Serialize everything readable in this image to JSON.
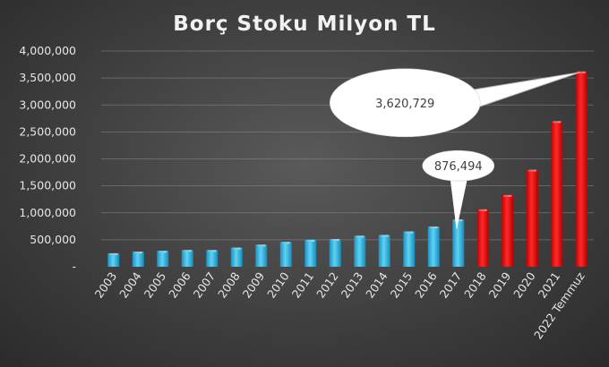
{
  "chart_data": {
    "type": "bar",
    "title": "Borç Stoku Milyon TL",
    "xlabel": "",
    "ylabel": "",
    "ylim": [
      0,
      4000000
    ],
    "ytick_labels": [
      "-",
      "500,000",
      "1,000,000",
      "1,500,000",
      "2,000,000",
      "2,500,000",
      "3,000,000",
      "3,500,000",
      "4,000,000"
    ],
    "grid": true,
    "categories": [
      "2003",
      "2004",
      "2005",
      "2006",
      "2007",
      "2008",
      "2009",
      "2010",
      "2011",
      "2012",
      "2013",
      "2014",
      "2015",
      "2016",
      "2017",
      "2018",
      "2019",
      "2020",
      "2021",
      "2022 Temmuz"
    ],
    "values": [
      250000,
      280000,
      295000,
      310000,
      310000,
      355000,
      410000,
      460000,
      500000,
      515000,
      575000,
      590000,
      655000,
      745000,
      876494,
      1065000,
      1330000,
      1800000,
      2700000,
      3620729
    ],
    "bar_colors": [
      "#29b6e8",
      "#29b6e8",
      "#29b6e8",
      "#29b6e8",
      "#29b6e8",
      "#29b6e8",
      "#29b6e8",
      "#29b6e8",
      "#29b6e8",
      "#29b6e8",
      "#29b6e8",
      "#29b6e8",
      "#29b6e8",
      "#29b6e8",
      "#29b6e8",
      "#ee1111",
      "#ee1111",
      "#ee1111",
      "#ee1111",
      "#ee1111"
    ],
    "annotations": [
      {
        "category": "2017",
        "text": "876,494"
      },
      {
        "category": "2022 Temmuz",
        "text": "3,620,729"
      }
    ]
  }
}
